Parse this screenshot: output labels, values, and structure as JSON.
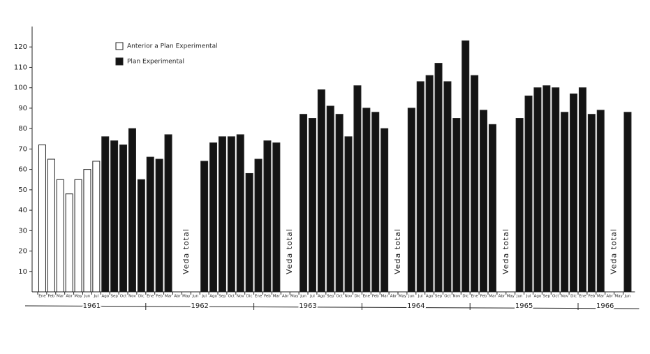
{
  "chart_data": {
    "type": "bar",
    "categories": [
      "Ene",
      "Feb",
      "Mar",
      "Abr",
      "May",
      "Jun",
      "Jul",
      "Ago",
      "Sep",
      "Oct",
      "Nov",
      "Dic",
      "Ene",
      "Feb",
      "Mar",
      "Abr",
      "May",
      "Jun",
      "Jul",
      "Ago",
      "Sep",
      "Oct",
      "Nov",
      "Dic",
      "Ene",
      "Feb",
      "Mar",
      "Abr",
      "May",
      "Jun",
      "Jul",
      "Ago",
      "Sep",
      "Oct",
      "Nov",
      "Dic",
      "Ene",
      "Feb",
      "Mar",
      "Abr",
      "May",
      "Jun",
      "Jul",
      "Ago",
      "Sep",
      "Oct",
      "Nov",
      "Dic",
      "Ene",
      "Feb",
      "Mar",
      "Abr",
      "May",
      "Jun",
      "Jul",
      "Ago",
      "Sep",
      "Oct",
      "Nov",
      "Dic",
      "Ene",
      "Feb",
      "Mar",
      "Abr",
      "May",
      "Jun"
    ],
    "years": [
      "1961",
      "1962",
      "1963",
      "1964",
      "1965",
      "1966"
    ],
    "series": [
      {
        "name": "Anterior a Plan Experimental",
        "color": "#ffffff",
        "values": [
          72,
          65,
          55,
          48,
          55,
          60,
          64,
          null,
          null,
          null,
          null,
          null,
          null,
          null,
          null,
          null,
          null,
          null,
          null,
          null,
          null,
          null,
          null,
          null,
          null,
          null,
          null,
          null,
          null,
          null,
          null,
          null,
          null,
          null,
          null,
          null,
          null,
          null,
          null,
          null,
          null,
          null,
          null,
          null,
          null,
          null,
          null,
          null,
          null,
          null,
          null,
          null,
          null,
          null,
          null,
          null,
          null,
          null,
          null,
          null,
          null,
          null,
          null,
          null,
          null,
          null
        ]
      },
      {
        "name": "Plan Experimental",
        "color": "#141414",
        "values": [
          null,
          null,
          null,
          null,
          null,
          null,
          null,
          76,
          74,
          72,
          80,
          55,
          66,
          65,
          77,
          null,
          null,
          null,
          64,
          73,
          76,
          76,
          77,
          58,
          65,
          74,
          73,
          null,
          null,
          87,
          85,
          99,
          91,
          87,
          76,
          101,
          90,
          88,
          80,
          null,
          null,
          90,
          103,
          106,
          112,
          103,
          85,
          123,
          106,
          89,
          82,
          null,
          null,
          85,
          96,
          100,
          101,
          100,
          88,
          97,
          100,
          87,
          89,
          null,
          null,
          88
        ]
      }
    ],
    "annotations": [
      "Veda total",
      "Veda total",
      "Veda total",
      "Veda total",
      "Veda total"
    ],
    "ylim": [
      0,
      130
    ],
    "yticks": [
      10,
      20,
      30,
      40,
      50,
      60,
      70,
      80,
      90,
      100,
      110,
      120
    ],
    "grid": false,
    "legend": "top-left"
  }
}
